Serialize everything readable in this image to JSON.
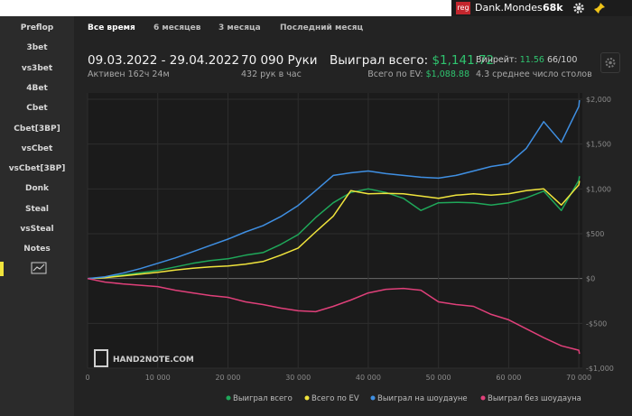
{
  "top_bar": {
    "badge": "reg",
    "user": "Dank.Mondes",
    "count": "68k"
  },
  "sidebar": {
    "items": [
      "Preflop",
      "3bet",
      "vs3bet",
      "4Bet",
      "Cbet",
      "Cbet[3BP]",
      "vsCbet",
      "vsCbet[3BP]",
      "Donk",
      "Steal",
      "vsSteal",
      "Notes"
    ]
  },
  "tabs": [
    "Все время",
    "6 месяцев",
    "3 месяца",
    "Последний месяц"
  ],
  "stats": {
    "period": "09.03.2022 - 29.04.2022",
    "active": "Активен 162ч 24м",
    "hands": "70 090 Руки",
    "hands_per_hour": "432 рук в час",
    "won_label": "Выиграл всего:",
    "won_value": "$1,141.72",
    "ev_label": "Всего по EV:",
    "ev_value": "$1,088.88",
    "winrate_label": "Винрейт:",
    "winrate_value": "11.56",
    "winrate_unit": "66/100",
    "tables": "4.3 среднее число столов"
  },
  "watermark": "HAND2NOTE.COM",
  "chart_data": {
    "type": "line",
    "x": [
      0,
      2500,
      5000,
      7500,
      10000,
      12500,
      15000,
      17500,
      20000,
      22500,
      25000,
      27500,
      30000,
      32500,
      35000,
      37500,
      40000,
      42500,
      45000,
      47500,
      50000,
      52500,
      55000,
      57500,
      60000,
      62500,
      65000,
      67500,
      70000,
      70090
    ],
    "series": [
      {
        "name": "Выиграл всего",
        "color": "#1fa85a",
        "values": [
          0,
          15,
          40,
          65,
          90,
          130,
          170,
          200,
          220,
          260,
          290,
          380,
          490,
          680,
          845,
          960,
          1000,
          960,
          895,
          760,
          845,
          850,
          845,
          820,
          845,
          900,
          975,
          760,
          1095,
          1141.72
        ]
      },
      {
        "name": "Всего по EV",
        "color": "#f0e43c",
        "values": [
          0,
          10,
          30,
          50,
          70,
          95,
          115,
          130,
          140,
          160,
          190,
          260,
          340,
          520,
          695,
          980,
          945,
          950,
          945,
          920,
          895,
          930,
          945,
          930,
          945,
          980,
          1000,
          820,
          1045,
          1088.88
        ]
      },
      {
        "name": "Выиграл на шоудауне",
        "color": "#3f8fe2",
        "values": [
          0,
          20,
          60,
          110,
          170,
          230,
          300,
          370,
          440,
          520,
          590,
          690,
          815,
          980,
          1150,
          1180,
          1200,
          1170,
          1150,
          1130,
          1120,
          1150,
          1200,
          1250,
          1280,
          1450,
          1750,
          1520,
          1920,
          1990
        ]
      },
      {
        "name": "Выиграл без шоудауна",
        "color": "#e0407a",
        "values": [
          0,
          -40,
          -60,
          -75,
          -90,
          -130,
          -160,
          -190,
          -210,
          -260,
          -290,
          -330,
          -360,
          -370,
          -310,
          -240,
          -160,
          -120,
          -110,
          -130,
          -260,
          -290,
          -310,
          -400,
          -460,
          -560,
          -660,
          -750,
          -800,
          -840
        ]
      }
    ],
    "xlim": [
      0,
      70500
    ],
    "ylim": [
      -1000,
      2000
    ],
    "xticks": [
      0,
      {
        "value": 10000,
        "label": "10 000"
      },
      {
        "value": 20000,
        "label": "20 000"
      },
      {
        "value": 30000,
        "label": "30 000"
      },
      {
        "value": 40000,
        "label": "40 000"
      },
      {
        "value": 50000,
        "label": "50 000"
      },
      {
        "value": 60000,
        "label": "60 000"
      },
      {
        "value": 70000,
        "label": "70 000"
      }
    ],
    "yticks": [
      {
        "value": -1000,
        "label": "-$1,000"
      },
      {
        "value": -500,
        "label": "-$500"
      },
      {
        "value": 0,
        "label": "$0"
      },
      {
        "value": 500,
        "label": "$500"
      },
      {
        "value": 1000,
        "label": "$1,000"
      },
      {
        "value": 1500,
        "label": "$1,500"
      },
      {
        "value": 2000,
        "label": "$2,000"
      }
    ],
    "grid": true
  }
}
